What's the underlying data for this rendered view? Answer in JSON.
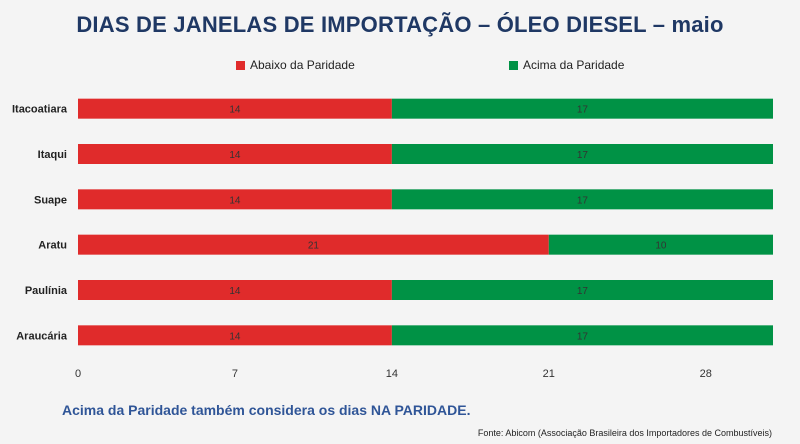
{
  "chart_data": {
    "type": "bar",
    "orientation": "horizontal",
    "stacked": true,
    "title": "DIAS DE JANELAS DE IMPORTAÇÃO – ÓLEO DIESEL – maio",
    "categories": [
      "Itacoatiara",
      "Itaqui",
      "Suape",
      "Aratu",
      "Paulínia",
      "Araucária"
    ],
    "series": [
      {
        "name": "Abaixo da Paridade",
        "color": "#e02b2b",
        "values": [
          14,
          14,
          14,
          21,
          14,
          14
        ]
      },
      {
        "name": "Acima da Paridade",
        "color": "#009245",
        "values": [
          17,
          17,
          17,
          10,
          17,
          17
        ]
      }
    ],
    "xlim": [
      0,
      31
    ],
    "xticks": [
      0,
      7,
      14,
      21,
      28
    ],
    "legend_position": "top",
    "grid": false
  },
  "note": "Acima da Paridade também considera os dias NA PARIDADE.",
  "source": "Fonte: Abicom (Associação Brasileira dos Importadores de Combustíveis)"
}
